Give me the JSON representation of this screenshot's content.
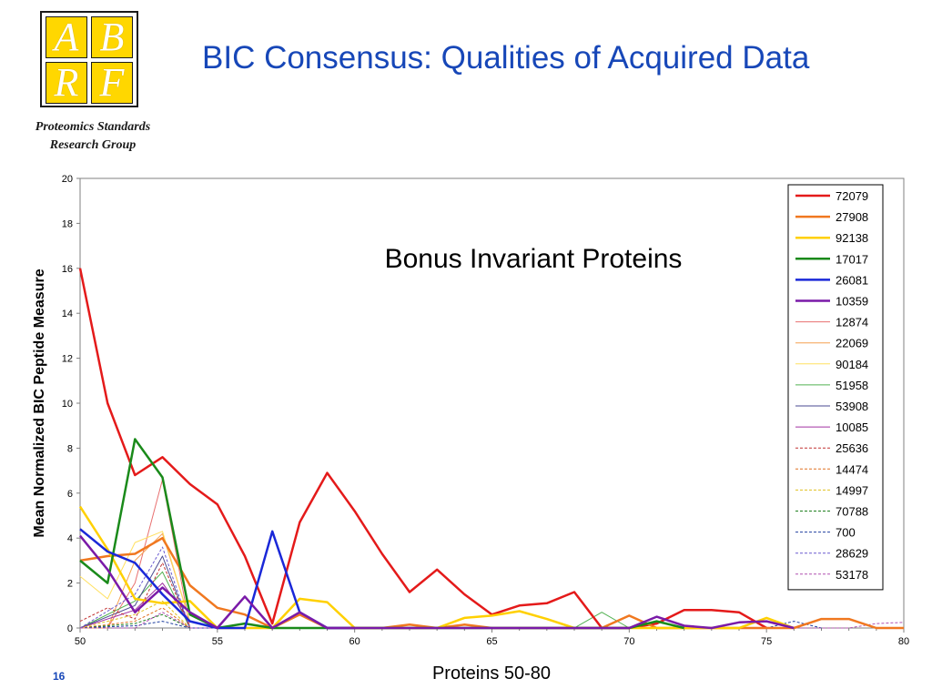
{
  "logo": {
    "letters": [
      "A",
      "B",
      "R",
      "F"
    ]
  },
  "group_name": [
    "Proteomics Standards",
    "Research Group"
  ],
  "slide": {
    "title": "BIC Consensus: Qualities of Acquired Data",
    "number": "16"
  },
  "chart_data": {
    "type": "line",
    "title": "Bonus Invariant Proteins",
    "xlabel": "Proteins 50-80",
    "ylabel": "Mean Normalized BIC Peptide Measure",
    "xlim": [
      50,
      80
    ],
    "ylim": [
      0,
      20
    ],
    "x_ticks": [
      50,
      55,
      60,
      65,
      70,
      75,
      80
    ],
    "y_ticks": [
      0,
      2,
      4,
      6,
      8,
      10,
      12,
      14,
      16,
      18,
      20
    ],
    "grid": false,
    "legend_position": "right",
    "series": [
      {
        "name": "72079",
        "color": "#e41a1a",
        "style": "solid",
        "width": 2.5,
        "x": [
          50,
          51,
          52,
          53,
          54,
          55,
          56,
          57,
          58,
          59,
          60,
          61,
          62,
          63,
          64,
          65,
          66,
          67,
          68,
          69,
          70,
          71,
          72,
          73,
          74,
          75
        ],
        "y": [
          16.0,
          10.0,
          6.8,
          7.6,
          6.4,
          5.5,
          3.2,
          0.2,
          4.7,
          6.9,
          5.2,
          3.3,
          1.6,
          2.6,
          1.5,
          0.6,
          1.0,
          1.1,
          1.6,
          0.0,
          0.0,
          0.2,
          0.8,
          0.8,
          0.7,
          0.0
        ]
      },
      {
        "name": "27908",
        "color": "#f07820",
        "style": "solid",
        "width": 2.5,
        "x": [
          50,
          51,
          52,
          53,
          54,
          55,
          56,
          57,
          58,
          59,
          60,
          61,
          62,
          63,
          64,
          65,
          66,
          67,
          68,
          69,
          70,
          71,
          72,
          73,
          74,
          75,
          76,
          77,
          78,
          79,
          80
        ],
        "y": [
          3.0,
          3.2,
          3.3,
          4.0,
          1.9,
          0.9,
          0.6,
          0.0,
          0.6,
          0.0,
          0.0,
          0.0,
          0.15,
          0.0,
          0.15,
          0.0,
          0.0,
          0.0,
          0.0,
          0.0,
          0.55,
          0.0,
          0.0,
          0.0,
          0.0,
          0.0,
          0.0,
          0.4,
          0.4,
          0.0,
          0.0
        ]
      },
      {
        "name": "92138",
        "color": "#ffd000",
        "style": "solid",
        "width": 2.5,
        "x": [
          50,
          51,
          52,
          53,
          54,
          55,
          56,
          57,
          58,
          59,
          60,
          61,
          62,
          63,
          64,
          65,
          66,
          67,
          68,
          69,
          70,
          71,
          72,
          73,
          74,
          75,
          76
        ],
        "y": [
          5.4,
          3.5,
          1.3,
          1.1,
          1.2,
          0.0,
          0.0,
          0.0,
          1.3,
          1.15,
          0.0,
          0.0,
          0.0,
          0.0,
          0.45,
          0.55,
          0.75,
          0.4,
          0.0,
          0.0,
          0.0,
          0.0,
          0.0,
          0.0,
          0.0,
          0.45,
          0.0
        ]
      },
      {
        "name": "17017",
        "color": "#1a8a1a",
        "style": "solid",
        "width": 2.5,
        "x": [
          50,
          51,
          52,
          53,
          54,
          55,
          56,
          57,
          58,
          59,
          60,
          70,
          71,
          72
        ],
        "y": [
          3.0,
          2.0,
          8.4,
          6.7,
          0.6,
          0.0,
          0.2,
          0.0,
          0.0,
          0.0,
          0.0,
          0.0,
          0.3,
          0.0
        ]
      },
      {
        "name": "26081",
        "color": "#1a28d8",
        "style": "solid",
        "width": 2.5,
        "x": [
          50,
          51,
          52,
          53,
          54,
          55,
          56,
          57,
          58,
          59,
          60
        ],
        "y": [
          4.4,
          3.4,
          2.9,
          1.5,
          0.3,
          0.0,
          0.0,
          4.3,
          0.7,
          0.0,
          0.0
        ]
      },
      {
        "name": "10359",
        "color": "#7a1aa8",
        "style": "solid",
        "width": 2.5,
        "x": [
          50,
          51,
          52,
          53,
          54,
          55,
          56,
          57,
          58,
          59,
          70,
          71,
          72,
          73,
          74,
          75,
          76
        ],
        "y": [
          4.1,
          2.6,
          0.7,
          1.8,
          0.7,
          0.0,
          1.4,
          0.0,
          0.7,
          0.0,
          0.0,
          0.5,
          0.1,
          0.0,
          0.25,
          0.3,
          0.0
        ]
      },
      {
        "name": "12874",
        "color": "#e87070",
        "style": "solid",
        "width": 1,
        "x": [
          50,
          51,
          52,
          53,
          54,
          55
        ],
        "y": [
          0.0,
          0.0,
          2.0,
          6.6,
          0.0,
          0.0
        ]
      },
      {
        "name": "22069",
        "color": "#f5a050",
        "style": "solid",
        "width": 1,
        "x": [
          50,
          51,
          52,
          53,
          54,
          55
        ],
        "y": [
          0.0,
          0.0,
          3.0,
          4.2,
          0.3,
          0.0
        ]
      },
      {
        "name": "90184",
        "color": "#ffe060",
        "style": "solid",
        "width": 1,
        "x": [
          50,
          51,
          52,
          53,
          54,
          55
        ],
        "y": [
          2.3,
          1.3,
          3.8,
          4.3,
          0.3,
          0.0
        ]
      },
      {
        "name": "51958",
        "color": "#50b050",
        "style": "solid",
        "width": 1,
        "x": [
          50,
          52,
          53,
          54,
          68,
          69,
          70
        ],
        "y": [
          0.0,
          1.2,
          2.5,
          0.0,
          0.0,
          0.7,
          0.0
        ]
      },
      {
        "name": "53908",
        "color": "#4a4a90",
        "style": "solid",
        "width": 1,
        "x": [
          50,
          52,
          53,
          54,
          55
        ],
        "y": [
          0.0,
          1.0,
          3.2,
          0.0,
          0.0
        ]
      },
      {
        "name": "10085",
        "color": "#a030a0",
        "style": "solid",
        "width": 1,
        "x": [
          50,
          52,
          53,
          54,
          55
        ],
        "y": [
          0.0,
          0.8,
          2.0,
          0.3,
          0.0
        ]
      },
      {
        "name": "25636",
        "color": "#c03030",
        "style": "dashed",
        "width": 1,
        "x": [
          50,
          51,
          52,
          53,
          54
        ],
        "y": [
          0.3,
          0.9,
          0.4,
          2.9,
          0.0
        ]
      },
      {
        "name": "14474",
        "color": "#e07020",
        "style": "dashed",
        "width": 1,
        "x": [
          50,
          52,
          53,
          54
        ],
        "y": [
          0.0,
          0.3,
          0.9,
          0.0
        ]
      },
      {
        "name": "14997",
        "color": "#e0c020",
        "style": "dashed",
        "width": 1,
        "x": [
          50,
          52,
          53,
          54
        ],
        "y": [
          0.0,
          0.6,
          1.2,
          0.0
        ]
      },
      {
        "name": "70788",
        "color": "#208020",
        "style": "dashed",
        "width": 1,
        "x": [
          50,
          52,
          53,
          54
        ],
        "y": [
          0.0,
          0.2,
          0.6,
          0.0
        ]
      },
      {
        "name": "700",
        "color": "#2040a0",
        "style": "dashed",
        "width": 1,
        "x": [
          50,
          52,
          53,
          54,
          75,
          76,
          77
        ],
        "y": [
          0.0,
          0.1,
          0.3,
          0.0,
          0.0,
          0.3,
          0.0
        ]
      },
      {
        "name": "28629",
        "color": "#6a5ad0",
        "style": "dashed",
        "width": 1,
        "x": [
          50,
          52,
          53,
          54
        ],
        "y": [
          0.0,
          1.5,
          3.6,
          0.0
        ]
      },
      {
        "name": "53178",
        "color": "#b050b0",
        "style": "dashed",
        "width": 1,
        "x": [
          50,
          51,
          52,
          53,
          54,
          78,
          79,
          80
        ],
        "y": [
          0.0,
          0.0,
          0.0,
          0.7,
          0.0,
          0.0,
          0.2,
          0.25
        ]
      }
    ]
  }
}
